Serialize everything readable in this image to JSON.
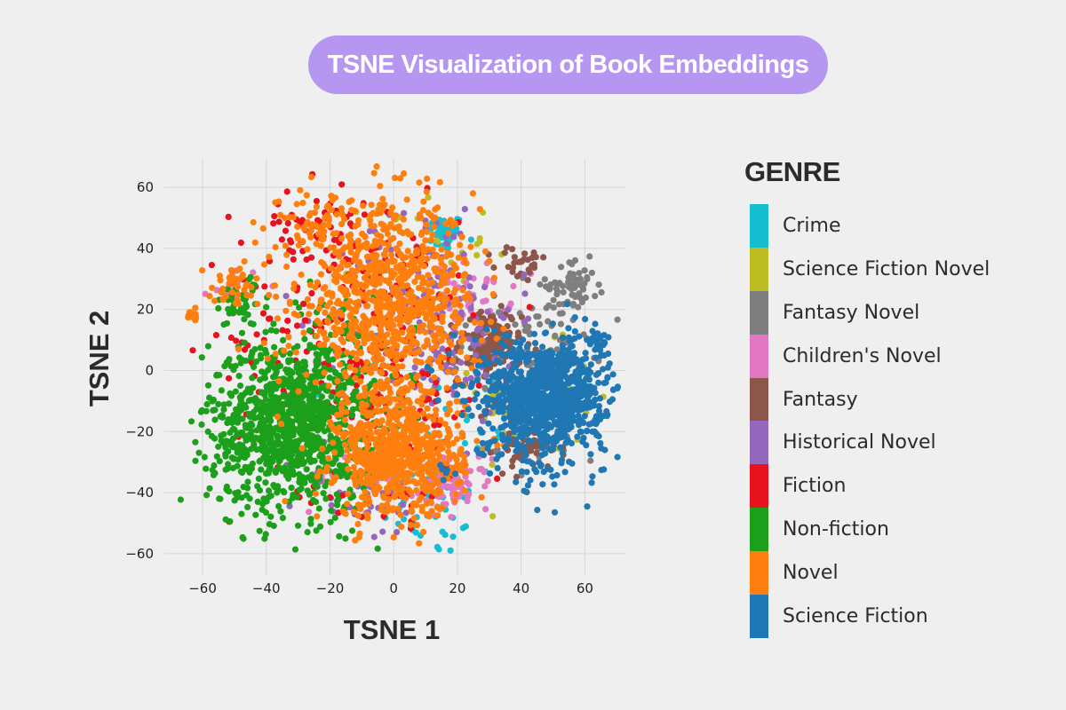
{
  "header": {
    "title": "TSNE Visualization of Book Embeddings"
  },
  "chart_data": {
    "type": "scatter",
    "title": "TSNE Visualization of Book Embeddings",
    "xlabel": "TSNE 1",
    "ylabel": "TSNE 2",
    "xlim": [
      -72,
      73
    ],
    "ylim": [
      -67,
      69
    ],
    "xticks": [
      "−60",
      "−40",
      "−20",
      "0",
      "20",
      "40",
      "60"
    ],
    "yticks": [
      "60",
      "40",
      "20",
      "0",
      "−20",
      "−40",
      "−60"
    ],
    "grid": true,
    "legend_placement": "right",
    "legend_title": "GENRE",
    "series": [
      {
        "name": "Crime",
        "color": "#17becf",
        "clusters": [
          {
            "cx": 16,
            "cy": 45,
            "sx": 3,
            "sy": 3,
            "n": 45
          },
          {
            "cx": 12,
            "cy": -45,
            "sx": 8,
            "sy": 8,
            "n": 40
          },
          {
            "cx": 25,
            "cy": -15,
            "sx": 12,
            "sy": 15,
            "n": 30
          }
        ]
      },
      {
        "name": "Science Fiction Novel",
        "color": "#bcbd22",
        "clusters": [
          {
            "cx": 45,
            "cy": -10,
            "sx": 9,
            "sy": 9,
            "n": 120
          },
          {
            "cx": 10,
            "cy": 40,
            "sx": 10,
            "sy": 10,
            "n": 20
          }
        ]
      },
      {
        "name": "Fantasy Novel",
        "color": "#7f7f7f",
        "clusters": [
          {
            "cx": 56,
            "cy": 28,
            "sx": 4,
            "sy": 4,
            "n": 60
          },
          {
            "cx": 42,
            "cy": 10,
            "sx": 12,
            "sy": 8,
            "n": 90
          },
          {
            "cx": 45,
            "cy": -25,
            "sx": 6,
            "sy": 4,
            "n": 30
          }
        ]
      },
      {
        "name": "Children's Novel",
        "color": "#e377c2",
        "clusters": [
          {
            "cx": 18,
            "cy": -37,
            "sx": 6,
            "sy": 4,
            "n": 90
          },
          {
            "cx": 25,
            "cy": 25,
            "sx": 6,
            "sy": 5,
            "n": 40
          },
          {
            "cx": -10,
            "cy": -35,
            "sx": 8,
            "sy": 6,
            "n": 30
          },
          {
            "cx": -50,
            "cy": 28,
            "sx": 4,
            "sy": 3,
            "n": 15
          }
        ]
      },
      {
        "name": "Fantasy",
        "color": "#8c564b",
        "clusters": [
          {
            "cx": 30,
            "cy": 8,
            "sx": 5,
            "sy": 6,
            "n": 150
          },
          {
            "cx": 42,
            "cy": -25,
            "sx": 5,
            "sy": 4,
            "n": 50
          },
          {
            "cx": 40,
            "cy": 35,
            "sx": 4,
            "sy": 3,
            "n": 30
          }
        ]
      },
      {
        "name": "Historical Novel",
        "color": "#9467bd",
        "clusters": [
          {
            "cx": 10,
            "cy": 20,
            "sx": 14,
            "sy": 18,
            "n": 150
          },
          {
            "cx": -10,
            "cy": -40,
            "sx": 10,
            "sy": 8,
            "n": 50
          },
          {
            "cx": 20,
            "cy": 10,
            "sx": 10,
            "sy": 10,
            "n": 40
          }
        ]
      },
      {
        "name": "Fiction",
        "color": "#e8121e",
        "clusters": [
          {
            "cx": -15,
            "cy": 10,
            "sx": 18,
            "sy": 25,
            "n": 200
          },
          {
            "cx": -25,
            "cy": 48,
            "sx": 8,
            "sy": 5,
            "n": 40
          },
          {
            "cx": 5,
            "cy": -10,
            "sx": 12,
            "sy": 20,
            "n": 80
          }
        ]
      },
      {
        "name": "Non-fiction",
        "color": "#1ca01c",
        "clusters": [
          {
            "cx": -32,
            "cy": -18,
            "sx": 13,
            "sy": 14,
            "n": 1100
          },
          {
            "cx": -48,
            "cy": 22,
            "sx": 5,
            "sy": 4,
            "n": 40
          },
          {
            "cx": -20,
            "cy": 5,
            "sx": 12,
            "sy": 12,
            "n": 50
          }
        ]
      },
      {
        "name": "Novel",
        "color": "#ff7f0e",
        "clusters": [
          {
            "cx": -2,
            "cy": 22,
            "sx": 14,
            "sy": 16,
            "n": 900
          },
          {
            "cx": 2,
            "cy": -28,
            "sx": 10,
            "sy": 10,
            "n": 700
          },
          {
            "cx": -25,
            "cy": 48,
            "sx": 6,
            "sy": 5,
            "n": 60
          },
          {
            "cx": -50,
            "cy": 28,
            "sx": 4,
            "sy": 3,
            "n": 40
          },
          {
            "cx": -63,
            "cy": 18,
            "sx": 1,
            "sy": 1,
            "n": 10
          }
        ]
      },
      {
        "name": "Science Fiction",
        "color": "#1f77b4",
        "clusters": [
          {
            "cx": 48,
            "cy": -8,
            "sx": 9,
            "sy": 9,
            "n": 900
          },
          {
            "cx": 64,
            "cy": 10,
            "sx": 1.2,
            "sy": 1.2,
            "n": 25
          },
          {
            "cx": 40,
            "cy": -15,
            "sx": 14,
            "sy": 14,
            "n": 100
          }
        ]
      }
    ]
  }
}
